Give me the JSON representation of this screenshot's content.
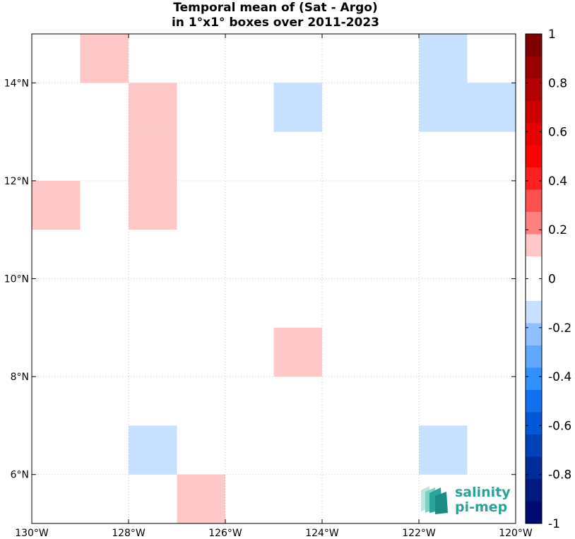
{
  "chart_data": {
    "type": "heatmap",
    "title": [
      "Temporal mean of (Sat - Argo)",
      "in 1°x1° boxes over 2011-2023"
    ],
    "x_range": [
      -130,
      -120
    ],
    "y_range": [
      5,
      15
    ],
    "x_ticks": [
      -130,
      -128,
      -126,
      -124,
      -122,
      -120
    ],
    "x_tick_labels": [
      "130°W",
      "128°W",
      "126°W",
      "124°W",
      "122°W",
      "120°W"
    ],
    "y_ticks": [
      6,
      8,
      10,
      12,
      14
    ],
    "y_tick_labels": [
      "6°N",
      "8°N",
      "10°N",
      "12°N",
      "14°N"
    ],
    "grid": true,
    "cells": [
      {
        "lon": -129,
        "lat": 14,
        "value": 0.15
      },
      {
        "lon": -128,
        "lat": 13,
        "value": 0.15
      },
      {
        "lon": -128,
        "lat": 12,
        "value": 0.15
      },
      {
        "lon": -128,
        "lat": 11,
        "value": 0.15
      },
      {
        "lon": -130,
        "lat": 11,
        "value": 0.15
      },
      {
        "lon": -125,
        "lat": 13,
        "value": -0.15
      },
      {
        "lon": -122,
        "lat": 14,
        "value": -0.15
      },
      {
        "lon": -122,
        "lat": 13,
        "value": -0.15
      },
      {
        "lon": -121,
        "lat": 13,
        "value": -0.15
      },
      {
        "lon": -125,
        "lat": 8,
        "value": 0.15
      },
      {
        "lon": -128,
        "lat": 6,
        "value": -0.15
      },
      {
        "lon": -122,
        "lat": 6,
        "value": -0.15
      },
      {
        "lon": -127,
        "lat": 5,
        "value": 0.15
      }
    ],
    "colorbar": {
      "range": [
        -1,
        1
      ],
      "tick_values": [
        1,
        0.8,
        0.6,
        0.4,
        0.2,
        0,
        -0.2,
        -0.4,
        -0.6,
        -0.8,
        -1
      ],
      "tick_labels": [
        "1",
        "0.8",
        "0.6",
        "0.4",
        "0.2",
        "0",
        "-0.2",
        "-0.4",
        "-0.6",
        "-0.8",
        "-1"
      ],
      "colors_top_to_bottom": [
        "#800000",
        "#990000",
        "#b30000",
        "#cc0000",
        "#e60000",
        "#ff0000",
        "#ff2020",
        "#ff5050",
        "#ff8080",
        "#ffc8c8",
        "#ffffff",
        "#ffffff",
        "#c8e0ff",
        "#90c0ff",
        "#60a8ff",
        "#3090ff",
        "#1070f0",
        "#0058d8",
        "#0040b8",
        "#002c98",
        "#001a80",
        "#000a70"
      ]
    }
  },
  "logo": {
    "line1": "salinity",
    "line2": "pi-mep"
  },
  "colors": {
    "positive_cell": "#ffc8c8",
    "negative_cell": "#c8e0ff",
    "logo": "#2aa39a"
  }
}
